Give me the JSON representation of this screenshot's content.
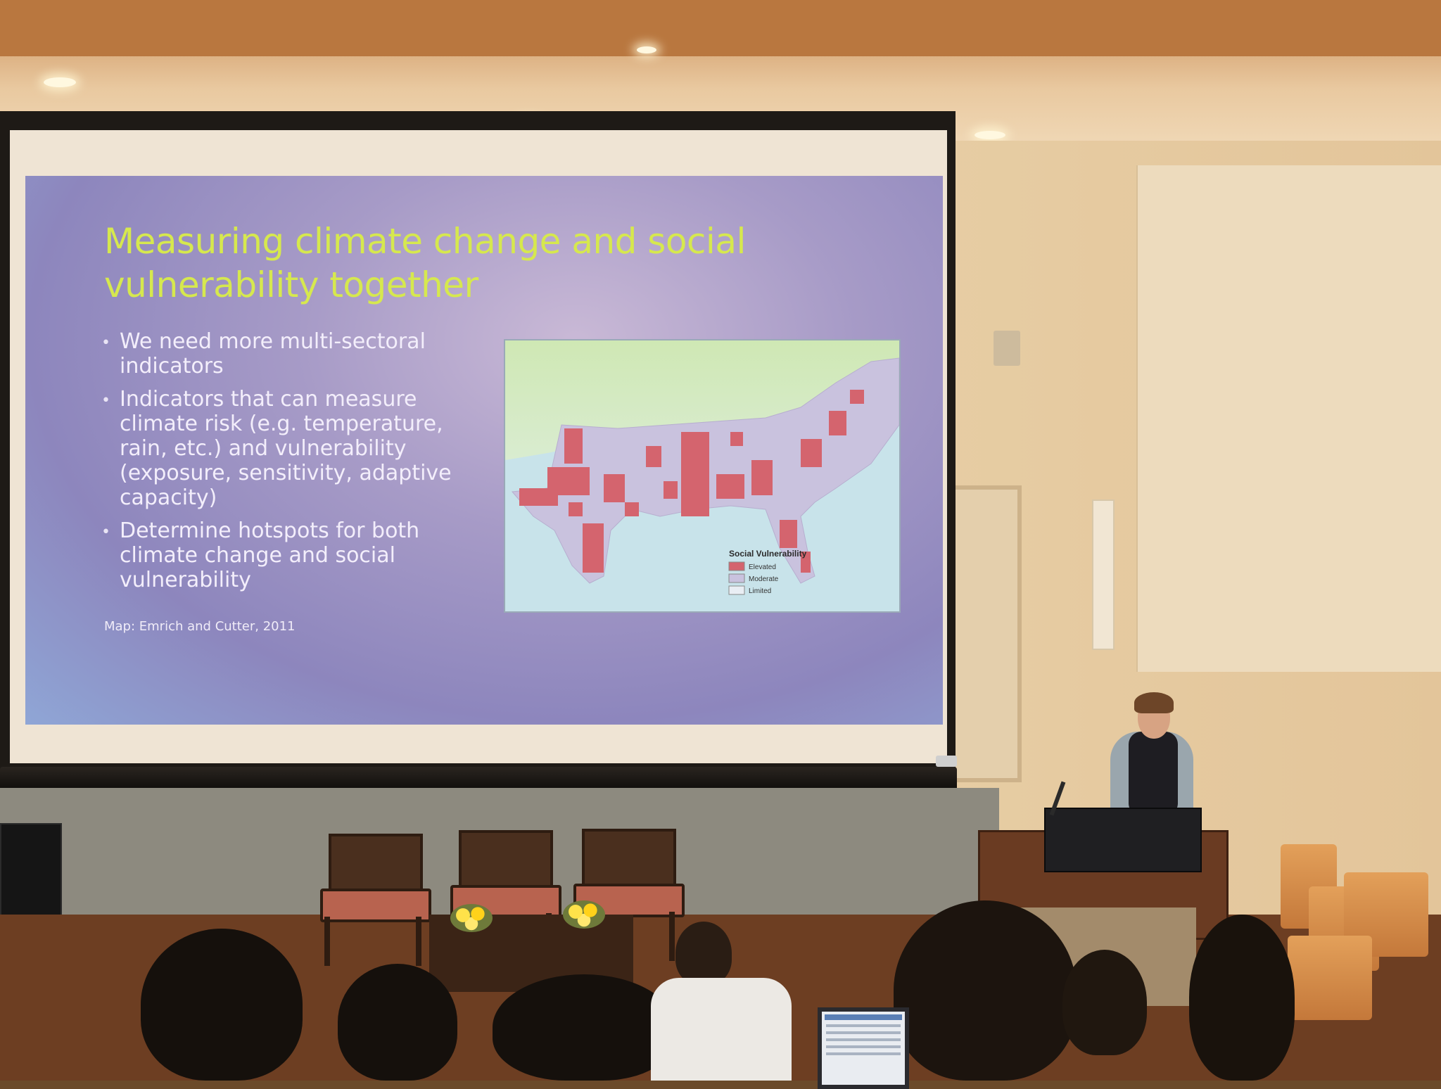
{
  "slide": {
    "title": "Measuring climate change and social vulnerability together",
    "bullets": [
      "We need more multi-sectoral indicators",
      "Indicators that can measure climate risk (e.g. temperature, rain, etc.) and vulnerability (exposure, sensitivity, adaptive capacity)",
      "Determine hotspots for both climate change and social vulnerability"
    ],
    "citation": "Map: Emrich and Cutter, 2011"
  },
  "map": {
    "legend_title": "Social Vulnerability",
    "legend": [
      {
        "label": "Elevated",
        "color": "#d4646e"
      },
      {
        "label": "Moderate",
        "color": "#c9c2de"
      },
      {
        "label": "Limited",
        "color": "#e9eef4"
      }
    ]
  },
  "colors": {
    "title": "#d6e84e",
    "body_text": "#f3eefb",
    "slide_background": "#a79bc7"
  }
}
